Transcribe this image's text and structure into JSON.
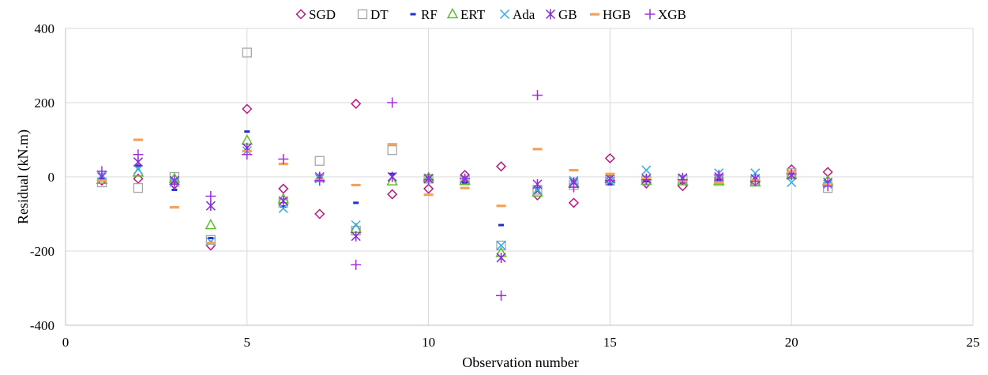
{
  "chart_data": {
    "type": "scatter",
    "title": "",
    "xlabel": "Observation number",
    "ylabel": "Residual (kN.m)",
    "xlim": [
      0,
      25
    ],
    "ylim": [
      -400,
      400
    ],
    "x_ticks": [
      "0",
      "5",
      "10",
      "15",
      "20",
      "25"
    ],
    "y_ticks": [
      "400",
      "200",
      "0",
      "-200",
      "-400"
    ],
    "grid": true,
    "legend_position": "top",
    "series": [
      {
        "name": "SGD",
        "marker": "diamond",
        "color": "#C0157D",
        "x": [
          1,
          2,
          3,
          4,
          5,
          6,
          7,
          8,
          9,
          10,
          11,
          12,
          13,
          14,
          15,
          16,
          17,
          18,
          19,
          20,
          21
        ],
        "y": [
          -10,
          -5,
          -20,
          -185,
          183,
          -32,
          -100,
          197,
          -47,
          -32,
          5,
          28,
          -50,
          -70,
          50,
          -18,
          -25,
          -5,
          -12,
          20,
          13
        ]
      },
      {
        "name": "DT",
        "marker": "square",
        "color": "#A6A6A6",
        "x": [
          1,
          2,
          3,
          4,
          5,
          6,
          7,
          8,
          9,
          10,
          11,
          12,
          13,
          14,
          15,
          16,
          17,
          18,
          19,
          20,
          21
        ],
        "y": [
          -15,
          -30,
          0,
          -170,
          335,
          -70,
          43,
          -145,
          72,
          -5,
          -10,
          -185,
          -35,
          -22,
          -8,
          -10,
          -8,
          -12,
          -10,
          10,
          -30
        ]
      },
      {
        "name": "RF",
        "marker": "dash",
        "color": "#1F2FD6",
        "x": [
          1,
          2,
          3,
          4,
          5,
          6,
          7,
          8,
          9,
          10,
          11,
          12,
          13,
          14,
          15,
          16,
          17,
          18,
          19,
          20,
          21
        ],
        "y": [
          -5,
          30,
          -35,
          -165,
          122,
          -80,
          -5,
          -70,
          8,
          -2,
          -15,
          -130,
          -30,
          -15,
          -20,
          -12,
          -15,
          -8,
          -10,
          8,
          -15
        ]
      },
      {
        "name": "ERT",
        "marker": "triangle",
        "color": "#5CC02E",
        "x": [
          1,
          2,
          3,
          4,
          5,
          6,
          7,
          8,
          9,
          10,
          11,
          12,
          13,
          14,
          15,
          16,
          17,
          18,
          19,
          20,
          21
        ],
        "y": [
          -8,
          12,
          -5,
          -130,
          98,
          -60,
          -3,
          -140,
          -12,
          -3,
          -10,
          -205,
          -42,
          -18,
          -5,
          -10,
          -12,
          -10,
          -15,
          5,
          -10
        ]
      },
      {
        "name": "Ada",
        "marker": "x",
        "color": "#2EB0F0",
        "x": [
          1,
          2,
          3,
          4,
          5,
          6,
          7,
          8,
          9,
          10,
          11,
          12,
          13,
          14,
          15,
          16,
          17,
          18,
          19,
          20,
          21
        ],
        "y": [
          5,
          20,
          -15,
          -175,
          70,
          -85,
          -5,
          -130,
          0,
          -5,
          -5,
          -185,
          -35,
          -10,
          -12,
          18,
          -5,
          10,
          10,
          -15,
          -20
        ]
      },
      {
        "name": "GB",
        "marker": "asterisk",
        "color": "#8A2BD2",
        "x": [
          1,
          2,
          3,
          4,
          5,
          6,
          7,
          8,
          9,
          10,
          11,
          12,
          13,
          14,
          15,
          16,
          17,
          18,
          19,
          20,
          21
        ],
        "y": [
          0,
          40,
          -10,
          -78,
          78,
          -65,
          0,
          -160,
          0,
          -5,
          -5,
          -218,
          -20,
          -15,
          -5,
          -5,
          -3,
          0,
          -5,
          5,
          -15
        ]
      },
      {
        "name": "HGB",
        "marker": "bar",
        "color": "#F3A25B",
        "x": [
          1,
          2,
          3,
          4,
          5,
          6,
          7,
          8,
          9,
          10,
          11,
          12,
          13,
          14,
          15,
          16,
          17,
          18,
          19,
          20,
          21
        ],
        "y": [
          -10,
          100,
          -82,
          -178,
          70,
          35,
          -8,
          -22,
          88,
          -48,
          -30,
          -78,
          75,
          18,
          8,
          -5,
          -12,
          -15,
          -10,
          15,
          -20
        ]
      },
      {
        "name": "XGB",
        "marker": "plus",
        "color": "#9C32D8",
        "x": [
          1,
          2,
          3,
          4,
          5,
          6,
          7,
          8,
          9,
          10,
          11,
          12,
          13,
          14,
          15,
          16,
          17,
          18,
          19,
          20,
          21
        ],
        "y": [
          15,
          60,
          -20,
          -52,
          60,
          48,
          -10,
          -237,
          200,
          -8,
          -5,
          -320,
          220,
          -28,
          -10,
          -8,
          -8,
          5,
          -12,
          8,
          -25
        ]
      }
    ]
  }
}
